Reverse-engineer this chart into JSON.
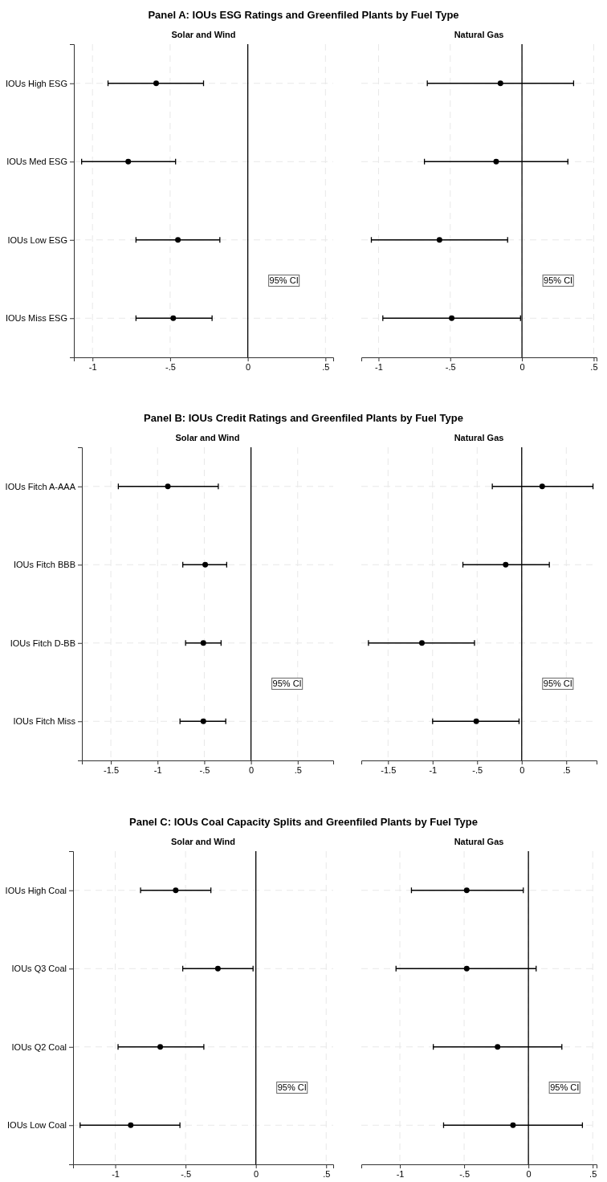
{
  "chart_data": [
    {
      "type": "scatter",
      "orientation": "horizontal",
      "title": "Panel A: IOUs ESG Ratings and Greenfiled Plants by Fuel Type",
      "subtitle": "Solar and Wind",
      "categories": [
        "IOUs High ESG",
        "IOUs Med ESG",
        "IOUs Low ESG",
        "IOUs Miss ESG"
      ],
      "series": [
        {
          "color": "#000000",
          "values": [
            -0.59,
            -0.77,
            -0.45,
            -0.48
          ],
          "errors": [
            [
              -0.9,
              -0.285
            ],
            [
              -1.07,
              -0.465
            ],
            [
              -0.72,
              -0.18
            ],
            [
              -0.72,
              -0.23
            ]
          ]
        }
      ],
      "xlim": [
        -1.12,
        0.55
      ],
      "xticks": [
        {
          "value": -1,
          "label": "-1"
        },
        {
          "value": -0.5,
          "label": "-.5"
        },
        {
          "value": 0,
          "label": "0"
        },
        {
          "value": 0.5,
          "label": ".5"
        }
      ],
      "grid": true,
      "marker": "circle",
      "ref_lines": [
        {
          "axis": "x",
          "value": 0,
          "color": "#000000"
        }
      ],
      "annotations": [
        "95% CI"
      ]
    },
    {
      "type": "scatter",
      "orientation": "horizontal",
      "subtitle": "Natural Gas",
      "categories": [
        null,
        null,
        null,
        null
      ],
      "tick_labels": "x",
      "series": [
        {
          "color": "#000000",
          "values": [
            -0.15,
            -0.18,
            -0.575,
            -0.49
          ],
          "errors": [
            [
              -0.66,
              0.36
            ],
            [
              -0.68,
              0.32
            ],
            [
              -1.05,
              -0.1
            ],
            [
              -0.97,
              -0.01
            ]
          ]
        }
      ],
      "xlim": [
        -1.12,
        0.52
      ],
      "xticks": [
        {
          "value": -1,
          "label": "-1"
        },
        {
          "value": -0.5,
          "label": "-.5"
        },
        {
          "value": 0,
          "label": "0"
        },
        {
          "value": 0.5,
          "label": ".5"
        }
      ],
      "grid": true,
      "marker": "circle",
      "ref_lines": [
        {
          "axis": "x",
          "value": 0,
          "color": "#000000"
        }
      ],
      "annotations": [
        "95% CI"
      ]
    },
    {
      "type": "scatter",
      "orientation": "horizontal",
      "title": "Panel B: IOUs Credit Ratings and Greenfiled Plants by Fuel Type",
      "subtitle": "Solar and Wind",
      "categories": [
        "IOUs Fitch A-AAA",
        "IOUs Fitch BBB",
        "IOUs Fitch D-BB",
        "IOUs Fitch Miss"
      ],
      "series": [
        {
          "color": "#000000",
          "values": [
            -0.89,
            -0.49,
            -0.51,
            -0.51
          ],
          "errors": [
            [
              -1.42,
              -0.35
            ],
            [
              -0.73,
              -0.26
            ],
            [
              -0.7,
              -0.32
            ],
            [
              -0.76,
              -0.27
            ]
          ]
        }
      ],
      "xlim": [
        -1.81,
        0.88
      ],
      "xticks": [
        {
          "value": -1.5,
          "label": "-1.5"
        },
        {
          "value": -1,
          "label": "-1"
        },
        {
          "value": -0.5,
          "label": "-.5"
        },
        {
          "value": 0,
          "label": "0"
        },
        {
          "value": 0.5,
          "label": ".5"
        }
      ],
      "grid": true,
      "marker": "circle",
      "ref_lines": [
        {
          "axis": "x",
          "value": 0,
          "color": "#000000"
        }
      ],
      "annotations": [
        "95% CI"
      ]
    },
    {
      "type": "scatter",
      "orientation": "horizontal",
      "subtitle": "Natural Gas",
      "categories": [
        null,
        null,
        null,
        null
      ],
      "tick_labels": "x",
      "series": [
        {
          "color": "#000000",
          "values": [
            0.23,
            -0.18,
            -1.12,
            -0.51
          ],
          "errors": [
            [
              -0.33,
              0.8
            ],
            [
              -0.66,
              0.31
            ],
            [
              -1.72,
              -0.53
            ],
            [
              -1.0,
              -0.03
            ]
          ]
        }
      ],
      "xlim": [
        -1.8,
        0.84
      ],
      "xticks": [
        {
          "value": -1.5,
          "label": "-1.5"
        },
        {
          "value": -1,
          "label": "-1"
        },
        {
          "value": -0.5,
          "label": "-.5"
        },
        {
          "value": 0,
          "label": "0"
        },
        {
          "value": 0.5,
          "label": ".5"
        }
      ],
      "grid": true,
      "marker": "circle",
      "ref_lines": [
        {
          "axis": "x",
          "value": 0,
          "color": "#000000"
        }
      ],
      "annotations": [
        "95% CI"
      ]
    },
    {
      "type": "scatter",
      "orientation": "horizontal",
      "title": "Panel C: IOUs Coal Capacity Splits and Greenfiled Plants by Fuel Type",
      "subtitle": "Solar and Wind",
      "categories": [
        "IOUs High Coal",
        "IOUs Q3 Coal",
        "IOUs Q2 Coal",
        "IOUs Low Coal"
      ],
      "series": [
        {
          "color": "#000000",
          "values": [
            -0.57,
            -0.27,
            -0.68,
            -0.89
          ],
          "errors": [
            [
              -0.82,
              -0.32
            ],
            [
              -0.52,
              -0.02
            ],
            [
              -0.98,
              -0.37
            ],
            [
              -1.25,
              -0.54
            ]
          ]
        }
      ],
      "xlim": [
        -1.3,
        0.55
      ],
      "xticks": [
        {
          "value": -1,
          "label": "-1"
        },
        {
          "value": -0.5,
          "label": "-.5"
        },
        {
          "value": 0,
          "label": "0"
        },
        {
          "value": 0.5,
          "label": ".5"
        }
      ],
      "grid": true,
      "marker": "circle",
      "ref_lines": [
        {
          "axis": "x",
          "value": 0,
          "color": "#000000"
        }
      ],
      "annotations": [
        "95% CI"
      ]
    },
    {
      "type": "scatter",
      "orientation": "horizontal",
      "subtitle": "Natural Gas",
      "categories": [
        null,
        null,
        null,
        null
      ],
      "tick_labels": "x",
      "series": [
        {
          "color": "#000000",
          "values": [
            -0.48,
            -0.48,
            -0.24,
            -0.12
          ],
          "errors": [
            [
              -0.91,
              -0.04
            ],
            [
              -1.03,
              0.06
            ],
            [
              -0.74,
              0.26
            ],
            [
              -0.66,
              0.42
            ]
          ]
        }
      ],
      "xlim": [
        -1.3,
        0.53
      ],
      "xticks": [
        {
          "value": -1,
          "label": "-1"
        },
        {
          "value": -0.5,
          "label": "-.5"
        },
        {
          "value": 0,
          "label": "0"
        },
        {
          "value": 0.5,
          "label": ".5"
        }
      ],
      "grid": true,
      "marker": "circle",
      "ref_lines": [
        {
          "axis": "x",
          "value": 0,
          "color": "#000000"
        }
      ],
      "annotations": [
        "95% CI"
      ]
    }
  ]
}
